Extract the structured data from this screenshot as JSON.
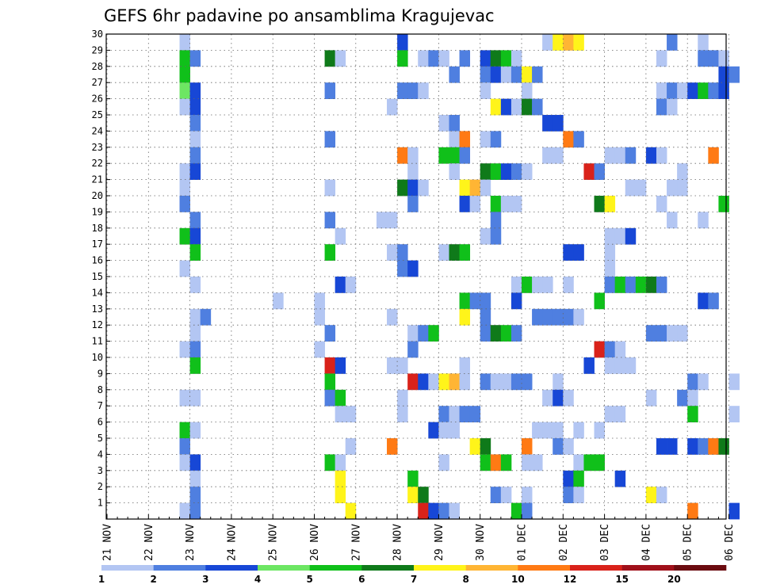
{
  "chart_data": {
    "type": "heatmap",
    "title": "GEFS 6hr padavine po ansamblima Kragujevac",
    "xlabel": "",
    "ylabel": "",
    "x_tick_labels": [
      "21 NOV",
      "22 NOV",
      "23 NOV",
      "24 NOV",
      "25 NOV",
      "26 NOV",
      "27 NOV",
      "28 NOV",
      "29 NOV",
      "30 NOV",
      "01 DEC",
      "02 DEC",
      "03 DEC",
      "04 DEC",
      "05 DEC",
      "06 DEC"
    ],
    "x_range_steps": [
      0,
      61
    ],
    "steps_per_day": 4,
    "y_tick_labels": [
      "1",
      "2",
      "3",
      "4",
      "5",
      "6",
      "7",
      "8",
      "9",
      "10",
      "11",
      "12",
      "13",
      "14",
      "15",
      "16",
      "17",
      "18",
      "19",
      "20",
      "21",
      "22",
      "23",
      "24",
      "25",
      "26",
      "27",
      "28",
      "29",
      "30"
    ],
    "ylim": [
      0,
      30
    ],
    "grid": true,
    "colorbar": {
      "labels": [
        "1",
        "2",
        "3",
        "4",
        "5",
        "6",
        "7",
        "8",
        "10",
        "12",
        "15",
        "20"
      ],
      "colors": [
        "#b3c6f3",
        "#4f7fe0",
        "#1747d6",
        "#6de663",
        "#10c01a",
        "#0f7a1a",
        "#fff41a",
        "#ffb534",
        "#ff7a14",
        "#d9221a",
        "#a0101a",
        "#6b0b10"
      ]
    },
    "cells_format": "[member, step, class] ; step = 6h interval index from 21 NOV 00Z, class = colorbar index",
    "cells": [
      [
        30,
        7,
        0
      ],
      [
        30,
        28,
        2
      ],
      [
        30,
        42,
        0
      ],
      [
        30,
        43,
        6
      ],
      [
        30,
        44,
        7
      ],
      [
        30,
        45,
        6
      ],
      [
        30,
        54,
        1
      ],
      [
        30,
        57,
        0
      ],
      [
        29,
        7,
        4
      ],
      [
        29,
        8,
        1
      ],
      [
        29,
        21,
        5
      ],
      [
        29,
        22,
        0
      ],
      [
        29,
        28,
        4
      ],
      [
        29,
        30,
        0
      ],
      [
        29,
        31,
        1
      ],
      [
        29,
        32,
        0
      ],
      [
        29,
        34,
        1
      ],
      [
        29,
        36,
        2
      ],
      [
        29,
        37,
        5
      ],
      [
        29,
        38,
        4
      ],
      [
        29,
        39,
        0
      ],
      [
        29,
        53,
        0
      ],
      [
        29,
        57,
        1
      ],
      [
        29,
        58,
        1
      ],
      [
        29,
        59,
        0
      ],
      [
        28,
        7,
        4
      ],
      [
        28,
        33,
        1
      ],
      [
        28,
        36,
        1
      ],
      [
        28,
        37,
        2
      ],
      [
        28,
        38,
        0
      ],
      [
        28,
        39,
        1
      ],
      [
        28,
        40,
        6
      ],
      [
        28,
        41,
        1
      ],
      [
        28,
        59,
        2
      ],
      [
        28,
        60,
        1
      ],
      [
        27,
        7,
        3
      ],
      [
        27,
        8,
        2
      ],
      [
        27,
        21,
        1
      ],
      [
        27,
        28,
        1
      ],
      [
        27,
        29,
        1
      ],
      [
        27,
        30,
        0
      ],
      [
        27,
        36,
        0
      ],
      [
        27,
        40,
        0
      ],
      [
        27,
        53,
        0
      ],
      [
        27,
        54,
        1
      ],
      [
        27,
        55,
        0
      ],
      [
        27,
        56,
        2
      ],
      [
        27,
        57,
        4
      ],
      [
        27,
        58,
        1
      ],
      [
        27,
        59,
        2
      ],
      [
        26,
        7,
        0
      ],
      [
        26,
        8,
        2
      ],
      [
        26,
        27,
        0
      ],
      [
        26,
        37,
        6
      ],
      [
        26,
        38,
        2
      ],
      [
        26,
        39,
        0
      ],
      [
        26,
        40,
        5
      ],
      [
        26,
        41,
        1
      ],
      [
        26,
        53,
        1
      ],
      [
        26,
        54,
        0
      ],
      [
        25,
        8,
        1
      ],
      [
        25,
        32,
        0
      ],
      [
        25,
        33,
        1
      ],
      [
        25,
        42,
        2
      ],
      [
        25,
        43,
        2
      ],
      [
        24,
        8,
        0
      ],
      [
        24,
        21,
        1
      ],
      [
        24,
        33,
        0
      ],
      [
        24,
        34,
        8
      ],
      [
        24,
        36,
        0
      ],
      [
        24,
        37,
        1
      ],
      [
        24,
        44,
        8
      ],
      [
        24,
        45,
        1
      ],
      [
        23,
        8,
        1
      ],
      [
        23,
        28,
        8
      ],
      [
        23,
        29,
        0
      ],
      [
        23,
        32,
        4
      ],
      [
        23,
        33,
        4
      ],
      [
        23,
        34,
        1
      ],
      [
        23,
        42,
        0
      ],
      [
        23,
        43,
        0
      ],
      [
        23,
        48,
        0
      ],
      [
        23,
        49,
        0
      ],
      [
        23,
        50,
        1
      ],
      [
        23,
        52,
        2
      ],
      [
        23,
        53,
        0
      ],
      [
        23,
        58,
        8
      ],
      [
        22,
        7,
        0
      ],
      [
        22,
        8,
        2
      ],
      [
        22,
        29,
        0
      ],
      [
        22,
        33,
        0
      ],
      [
        22,
        36,
        5
      ],
      [
        22,
        37,
        4
      ],
      [
        22,
        38,
        2
      ],
      [
        22,
        39,
        1
      ],
      [
        22,
        40,
        0
      ],
      [
        22,
        46,
        9
      ],
      [
        22,
        47,
        1
      ],
      [
        22,
        55,
        0
      ],
      [
        21,
        7,
        0
      ],
      [
        21,
        21,
        0
      ],
      [
        21,
        28,
        5
      ],
      [
        21,
        29,
        2
      ],
      [
        21,
        30,
        0
      ],
      [
        21,
        34,
        6
      ],
      [
        21,
        35,
        7
      ],
      [
        21,
        36,
        0
      ],
      [
        21,
        50,
        0
      ],
      [
        21,
        51,
        0
      ],
      [
        21,
        54,
        0
      ],
      [
        21,
        55,
        0
      ],
      [
        20,
        7,
        1
      ],
      [
        20,
        29,
        1
      ],
      [
        20,
        34,
        2
      ],
      [
        20,
        35,
        0
      ],
      [
        20,
        37,
        4
      ],
      [
        20,
        38,
        0
      ],
      [
        20,
        39,
        0
      ],
      [
        20,
        47,
        5
      ],
      [
        20,
        48,
        6
      ],
      [
        20,
        53,
        0
      ],
      [
        20,
        59,
        4
      ],
      [
        19,
        8,
        1
      ],
      [
        19,
        21,
        1
      ],
      [
        19,
        26,
        0
      ],
      [
        19,
        27,
        0
      ],
      [
        19,
        37,
        1
      ],
      [
        19,
        54,
        0
      ],
      [
        19,
        57,
        0
      ],
      [
        18,
        7,
        4
      ],
      [
        18,
        8,
        2
      ],
      [
        18,
        22,
        0
      ],
      [
        18,
        36,
        0
      ],
      [
        18,
        37,
        1
      ],
      [
        18,
        48,
        0
      ],
      [
        18,
        49,
        0
      ],
      [
        18,
        50,
        2
      ],
      [
        17,
        8,
        4
      ],
      [
        17,
        21,
        4
      ],
      [
        17,
        27,
        0
      ],
      [
        17,
        28,
        1
      ],
      [
        17,
        32,
        0
      ],
      [
        17,
        33,
        5
      ],
      [
        17,
        34,
        4
      ],
      [
        17,
        44,
        2
      ],
      [
        17,
        45,
        2
      ],
      [
        17,
        48,
        0
      ],
      [
        16,
        7,
        0
      ],
      [
        16,
        28,
        1
      ],
      [
        16,
        29,
        2
      ],
      [
        16,
        48,
        0
      ],
      [
        15,
        8,
        0
      ],
      [
        15,
        22,
        2
      ],
      [
        15,
        23,
        0
      ],
      [
        15,
        39,
        0
      ],
      [
        15,
        40,
        4
      ],
      [
        15,
        41,
        0
      ],
      [
        15,
        42,
        0
      ],
      [
        15,
        44,
        0
      ],
      [
        15,
        48,
        1
      ],
      [
        15,
        49,
        4
      ],
      [
        15,
        50,
        1
      ],
      [
        15,
        51,
        4
      ],
      [
        15,
        52,
        5
      ],
      [
        15,
        53,
        1
      ],
      [
        14,
        16,
        0
      ],
      [
        14,
        20,
        0
      ],
      [
        14,
        34,
        4
      ],
      [
        14,
        35,
        1
      ],
      [
        14,
        36,
        1
      ],
      [
        14,
        39,
        2
      ],
      [
        14,
        47,
        4
      ],
      [
        14,
        57,
        2
      ],
      [
        14,
        58,
        1
      ],
      [
        13,
        8,
        0
      ],
      [
        13,
        9,
        1
      ],
      [
        13,
        20,
        0
      ],
      [
        13,
        27,
        0
      ],
      [
        13,
        34,
        6
      ],
      [
        13,
        36,
        1
      ],
      [
        13,
        41,
        1
      ],
      [
        13,
        42,
        1
      ],
      [
        13,
        43,
        1
      ],
      [
        13,
        44,
        1
      ],
      [
        13,
        45,
        0
      ],
      [
        12,
        8,
        0
      ],
      [
        12,
        21,
        1
      ],
      [
        12,
        29,
        0
      ],
      [
        12,
        30,
        1
      ],
      [
        12,
        31,
        4
      ],
      [
        12,
        36,
        1
      ],
      [
        12,
        37,
        5
      ],
      [
        12,
        38,
        4
      ],
      [
        12,
        39,
        1
      ],
      [
        12,
        52,
        1
      ],
      [
        12,
        53,
        1
      ],
      [
        12,
        54,
        0
      ],
      [
        12,
        55,
        0
      ],
      [
        11,
        7,
        0
      ],
      [
        11,
        8,
        1
      ],
      [
        11,
        20,
        0
      ],
      [
        11,
        29,
        1
      ],
      [
        11,
        47,
        9
      ],
      [
        11,
        48,
        1
      ],
      [
        11,
        49,
        0
      ],
      [
        10,
        8,
        4
      ],
      [
        10,
        21,
        9
      ],
      [
        10,
        22,
        2
      ],
      [
        10,
        27,
        0
      ],
      [
        10,
        28,
        0
      ],
      [
        10,
        34,
        0
      ],
      [
        10,
        46,
        2
      ],
      [
        10,
        48,
        0
      ],
      [
        10,
        49,
        0
      ],
      [
        10,
        50,
        0
      ],
      [
        9,
        21,
        4
      ],
      [
        9,
        29,
        9
      ],
      [
        9,
        30,
        2
      ],
      [
        9,
        31,
        0
      ],
      [
        9,
        32,
        6
      ],
      [
        9,
        33,
        7
      ],
      [
        9,
        34,
        0
      ],
      [
        9,
        36,
        1
      ],
      [
        9,
        37,
        0
      ],
      [
        9,
        38,
        0
      ],
      [
        9,
        39,
        1
      ],
      [
        9,
        40,
        1
      ],
      [
        9,
        43,
        0
      ],
      [
        9,
        56,
        1
      ],
      [
        9,
        57,
        0
      ],
      [
        9,
        60,
        0
      ],
      [
        8,
        7,
        0
      ],
      [
        8,
        8,
        0
      ],
      [
        8,
        21,
        1
      ],
      [
        8,
        22,
        4
      ],
      [
        8,
        28,
        0
      ],
      [
        8,
        42,
        0
      ],
      [
        8,
        43,
        2
      ],
      [
        8,
        44,
        0
      ],
      [
        8,
        52,
        0
      ],
      [
        8,
        55,
        1
      ],
      [
        8,
        56,
        0
      ],
      [
        7,
        22,
        0
      ],
      [
        7,
        23,
        0
      ],
      [
        7,
        28,
        0
      ],
      [
        7,
        32,
        1
      ],
      [
        7,
        33,
        0
      ],
      [
        7,
        34,
        1
      ],
      [
        7,
        35,
        1
      ],
      [
        7,
        48,
        0
      ],
      [
        7,
        49,
        0
      ],
      [
        7,
        56,
        4
      ],
      [
        7,
        60,
        0
      ],
      [
        6,
        7,
        4
      ],
      [
        6,
        8,
        0
      ],
      [
        6,
        31,
        2
      ],
      [
        6,
        32,
        0
      ],
      [
        6,
        33,
        0
      ],
      [
        6,
        41,
        0
      ],
      [
        6,
        42,
        0
      ],
      [
        6,
        43,
        0
      ],
      [
        6,
        45,
        0
      ],
      [
        6,
        47,
        0
      ],
      [
        5,
        7,
        1
      ],
      [
        5,
        23,
        0
      ],
      [
        5,
        27,
        8
      ],
      [
        5,
        35,
        6
      ],
      [
        5,
        36,
        5
      ],
      [
        5,
        40,
        8
      ],
      [
        5,
        43,
        1
      ],
      [
        5,
        44,
        0
      ],
      [
        5,
        53,
        2
      ],
      [
        5,
        54,
        2
      ],
      [
        5,
        56,
        2
      ],
      [
        5,
        57,
        1
      ],
      [
        5,
        58,
        8
      ],
      [
        5,
        59,
        5
      ],
      [
        4,
        7,
        0
      ],
      [
        4,
        8,
        2
      ],
      [
        4,
        21,
        4
      ],
      [
        4,
        22,
        0
      ],
      [
        4,
        32,
        0
      ],
      [
        4,
        36,
        4
      ],
      [
        4,
        37,
        8
      ],
      [
        4,
        38,
        4
      ],
      [
        4,
        40,
        0
      ],
      [
        4,
        41,
        0
      ],
      [
        4,
        45,
        0
      ],
      [
        4,
        46,
        4
      ],
      [
        4,
        47,
        4
      ],
      [
        3,
        8,
        0
      ],
      [
        3,
        22,
        6
      ],
      [
        3,
        29,
        4
      ],
      [
        3,
        44,
        2
      ],
      [
        3,
        45,
        4
      ],
      [
        3,
        49,
        2
      ],
      [
        2,
        8,
        1
      ],
      [
        2,
        22,
        6
      ],
      [
        2,
        29,
        6
      ],
      [
        2,
        30,
        5
      ],
      [
        2,
        37,
        1
      ],
      [
        2,
        38,
        0
      ],
      [
        2,
        40,
        0
      ],
      [
        2,
        44,
        1
      ],
      [
        2,
        45,
        0
      ],
      [
        2,
        52,
        6
      ],
      [
        2,
        53,
        0
      ],
      [
        1,
        7,
        0
      ],
      [
        1,
        8,
        1
      ],
      [
        1,
        23,
        6
      ],
      [
        1,
        30,
        9
      ],
      [
        1,
        31,
        2
      ],
      [
        1,
        32,
        1
      ],
      [
        1,
        33,
        0
      ],
      [
        1,
        39,
        4
      ],
      [
        1,
        40,
        1
      ],
      [
        1,
        56,
        8
      ],
      [
        1,
        60,
        2
      ]
    ]
  }
}
